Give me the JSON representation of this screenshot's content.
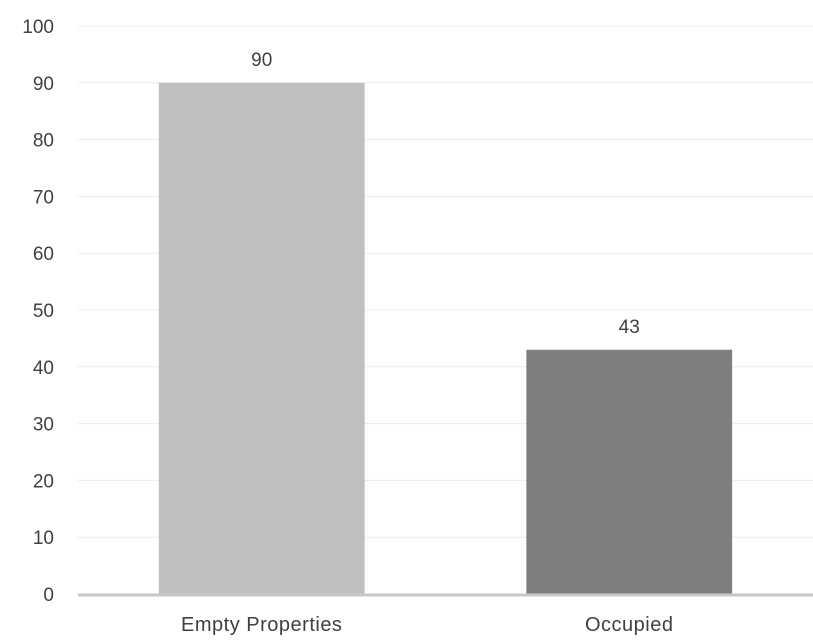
{
  "chart_data": {
    "type": "bar",
    "title": "",
    "xlabel": "",
    "ylabel": "",
    "categories": [
      "Empty Properties",
      "Occupied"
    ],
    "values": [
      90,
      43
    ],
    "data_labels": [
      "90",
      "43"
    ],
    "bar_colors": [
      "#bfbfbf",
      "#7f7f7f"
    ],
    "ylim": [
      0,
      100
    ],
    "yticks": [
      0,
      10,
      20,
      30,
      40,
      50,
      60,
      70,
      80,
      90,
      100
    ],
    "ytick_labels": [
      "0",
      "10",
      "20",
      "30",
      "40",
      "50",
      "60",
      "70",
      "80",
      "90",
      "100"
    ],
    "grid": true,
    "legend": "none"
  }
}
